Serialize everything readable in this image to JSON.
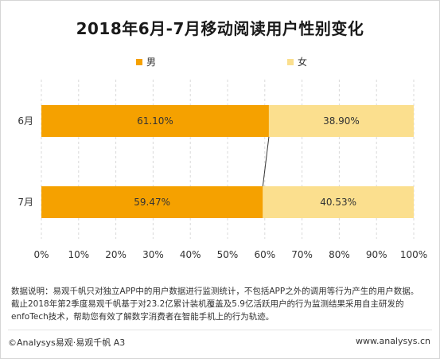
{
  "title": "2018年6月-7月移动阅读用户性别变化",
  "chart_data": {
    "type": "bar",
    "orientation": "horizontal",
    "stacked": true,
    "categories": [
      "6月",
      "7月"
    ],
    "series": [
      {
        "name": "男",
        "values": [
          61.1,
          59.47
        ],
        "labels": [
          "61.10%",
          "59.47%"
        ],
        "color": "#F5A100"
      },
      {
        "name": "女",
        "values": [
          38.9,
          40.53
        ],
        "labels": [
          "38.90%",
          "40.53%"
        ],
        "color": "#FBDF8E"
      }
    ],
    "xlim": [
      0,
      100
    ],
    "x_ticks": [
      "0%",
      "10%",
      "20%",
      "30%",
      "40%",
      "50%",
      "60%",
      "70%",
      "80%",
      "90%",
      "100%"
    ],
    "grid": "vertical dashed",
    "legend": "top"
  },
  "note": {
    "line1": "数据说明：易观千帆只对独立APP中的用户数据进行监测统计，不包括APP之外的调用等行为产生的用户数据。",
    "line2": "截止2018年第2季度易观千帆基于对23.2亿累计装机覆盖及5.9亿活跃用户的行为监测结果采用自主研发的",
    "line3": "enfoTech技术，帮助您有效了解数字消费者在智能手机上的行为轨迹。"
  },
  "footer": {
    "left": "©Analysys易观·易观千帆 A3",
    "right": "www.analysys.cn"
  }
}
